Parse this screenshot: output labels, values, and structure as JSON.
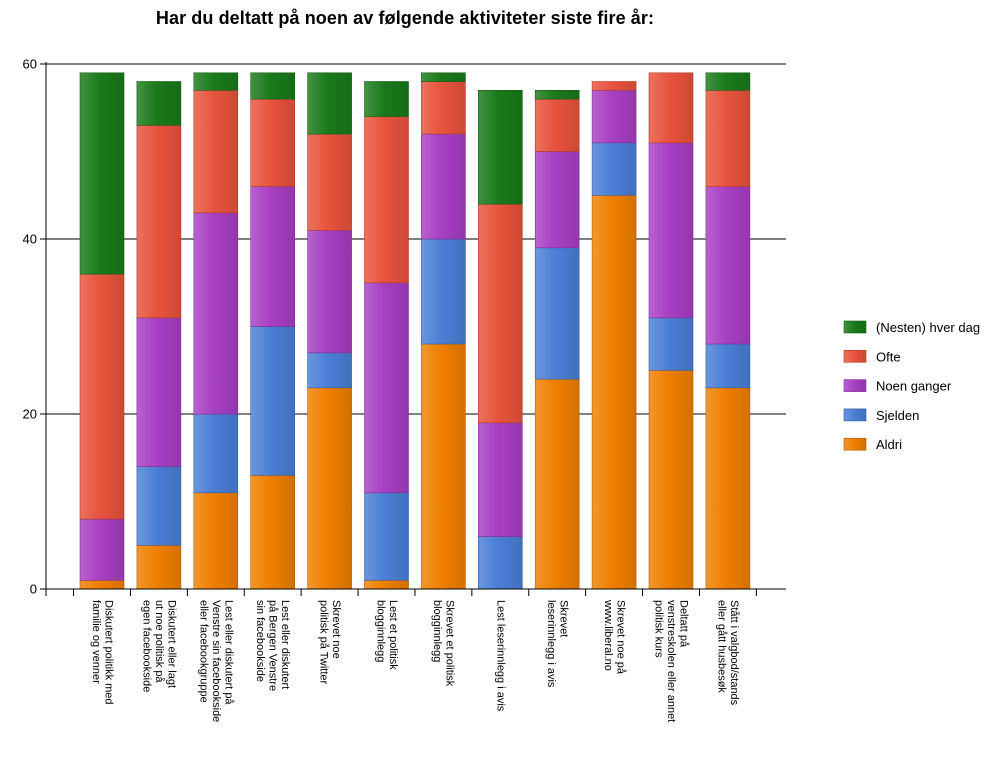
{
  "chart_data": {
    "type": "bar",
    "stacked": true,
    "title": "Har du deltatt på noen av følgende aktiviteter siste fire år:",
    "xlabel": "",
    "ylabel": "",
    "ylim": [
      0,
      60
    ],
    "yticks": [
      0,
      20,
      40,
      60
    ],
    "grid": true,
    "legend_position": "right",
    "categories": [
      [
        "Diskutert politikk med",
        "familie og venner"
      ],
      [
        "Diskutert eller lagt",
        "ut noe politisk på",
        "egen facebookside"
      ],
      [
        "Lest eller diskutert på",
        "Venstre sin facebookside",
        "eller facebookgruppe"
      ],
      [
        "Lest eller diskutert",
        "på Bergen Venstre",
        "sin facebookside"
      ],
      [
        "Skrevet noe",
        "politisk på Twitter"
      ],
      [
        "Lest et politisk",
        "blogginnlegg"
      ],
      [
        "Skrevet et politisk",
        "blogginnlegg"
      ],
      [
        "Lest leserinnlegg i avis"
      ],
      [
        "Skrevet",
        "leserinnlegg i avis"
      ],
      [
        "Skrevet noe på",
        "www.liberal.no"
      ],
      [
        "Deltatt på",
        "venstreskolen eller annet",
        "politisk kurs"
      ],
      [
        "Stått i valgbod/stands",
        "eller gått husbesøk"
      ]
    ],
    "series": [
      {
        "name": "Aldri",
        "color": "#ef7f00",
        "values": [
          1,
          5,
          11,
          13,
          23,
          1,
          28,
          0,
          24,
          45,
          25,
          23
        ]
      },
      {
        "name": "Sjelden",
        "color": "#4a7fd6",
        "values": [
          0,
          9,
          9,
          17,
          4,
          10,
          12,
          6,
          15,
          6,
          6,
          5
        ]
      },
      {
        "name": "Noen ganger",
        "color": "#a83fc4",
        "values": [
          7,
          17,
          23,
          16,
          14,
          24,
          12,
          13,
          11,
          6,
          20,
          18
        ]
      },
      {
        "name": "Ofte",
        "color": "#e8533c",
        "values": [
          28,
          22,
          14,
          10,
          11,
          19,
          6,
          25,
          6,
          1,
          8,
          11
        ]
      },
      {
        "name": "(Nesten) hver dag",
        "color": "#1a7a1a",
        "values": [
          23,
          5,
          2,
          3,
          7,
          4,
          1,
          13,
          1,
          0,
          0,
          2
        ]
      }
    ],
    "legend_order": [
      "(Nesten) hver dag",
      "Ofte",
      "Noen ganger",
      "Sjelden",
      "Aldri"
    ]
  }
}
